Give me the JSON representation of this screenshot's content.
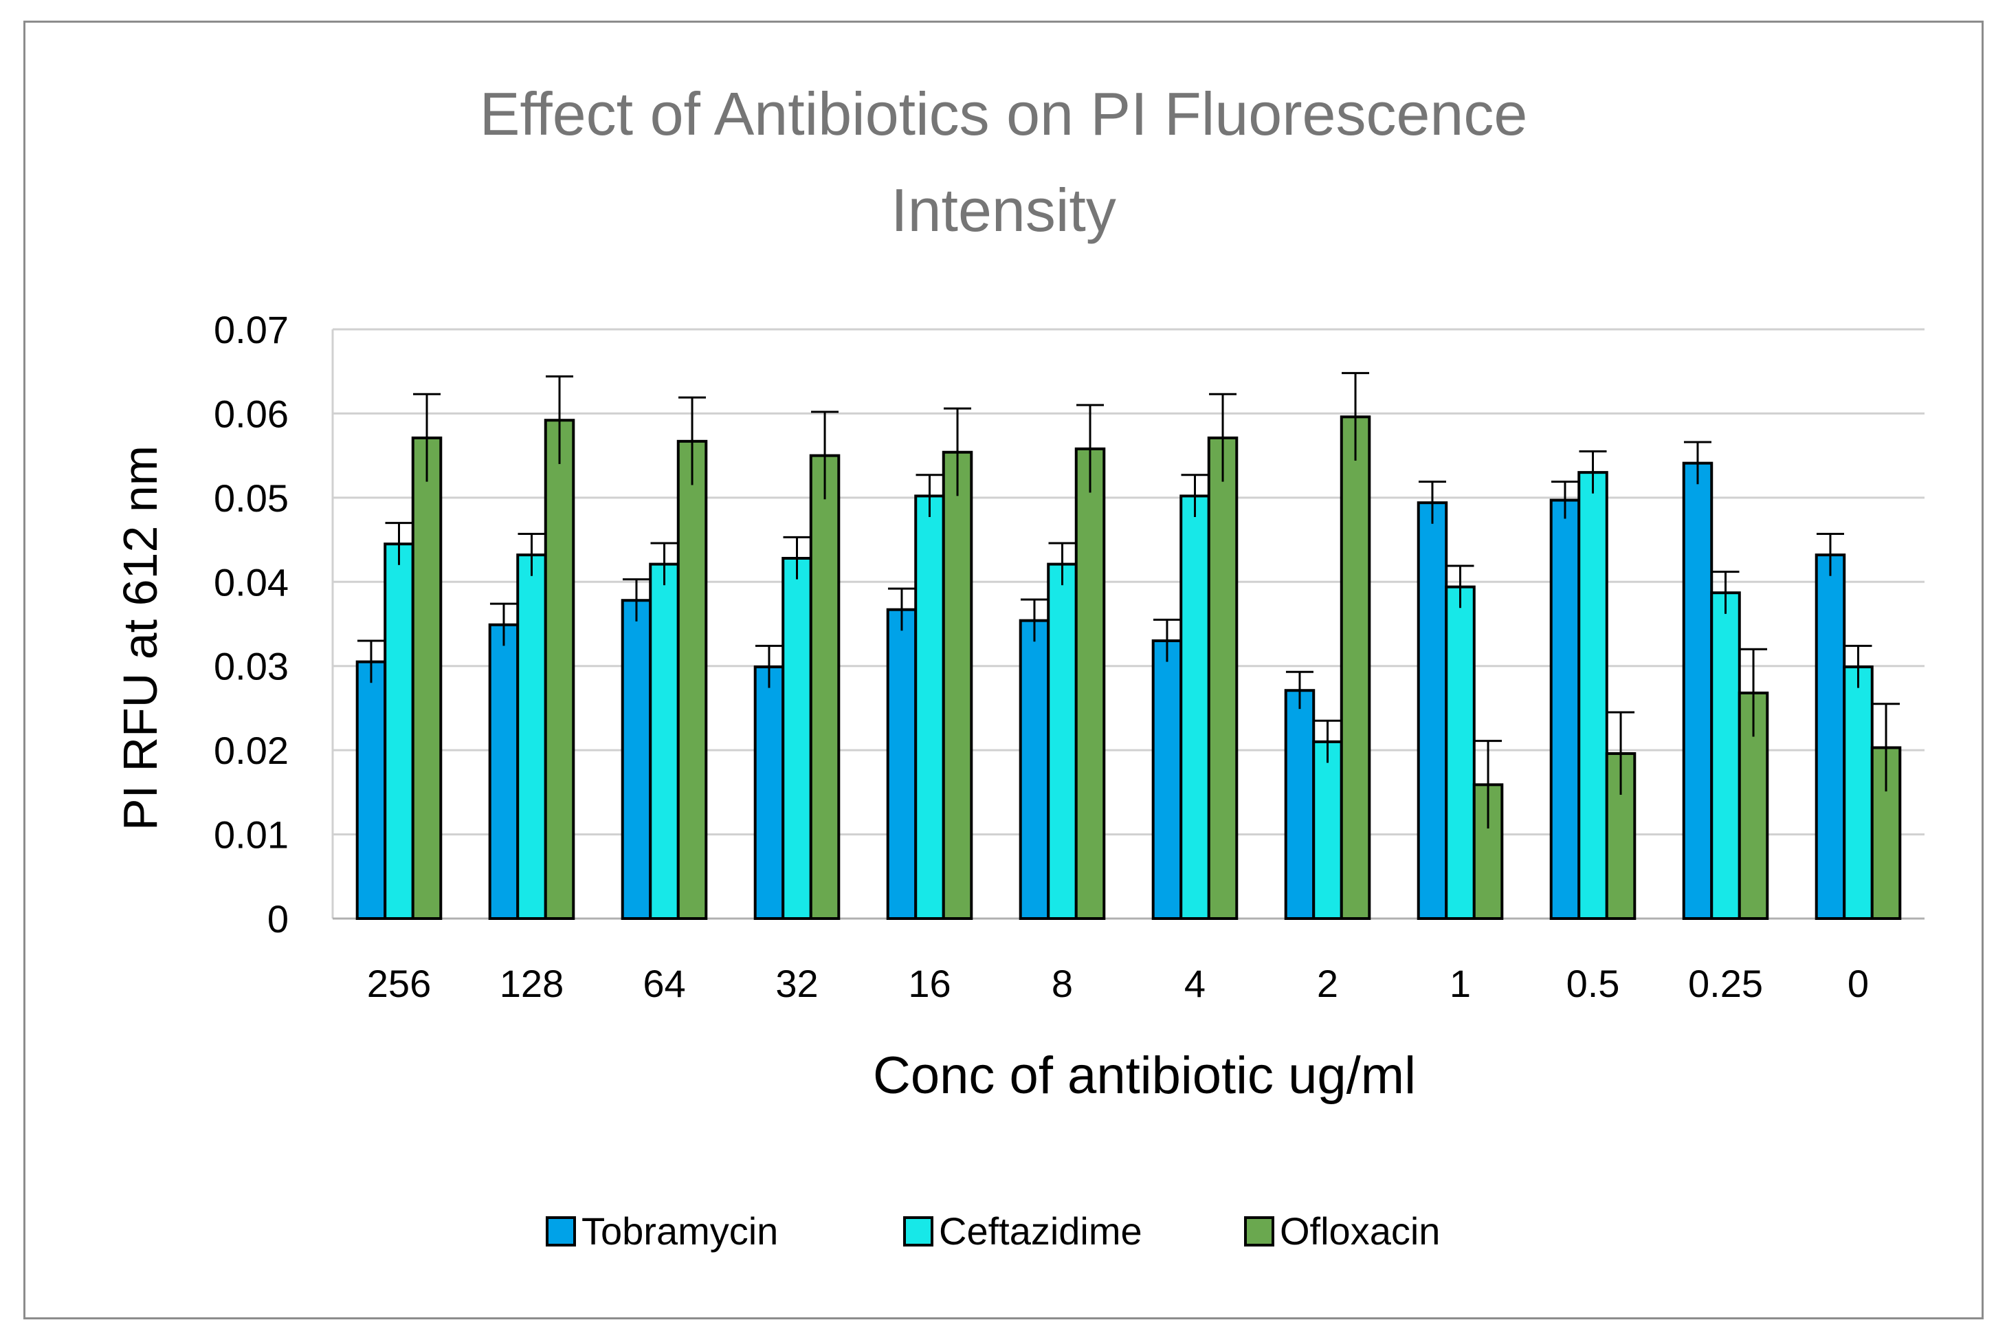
{
  "chart_data": {
    "type": "bar",
    "title_lines": [
      "Effect of Antibiotics on PI Fluorescence",
      "Intensity"
    ],
    "xlabel": "Conc of antibiotic ug/ml",
    "ylabel": "PI RFU at 612 nm",
    "ylim": [
      0,
      0.07
    ],
    "yticks": [
      0,
      0.01,
      0.02,
      0.03,
      0.04,
      0.05,
      0.06,
      0.07
    ],
    "ytick_labels": [
      "0",
      "0.01",
      "0.02",
      "0.03",
      "0.04",
      "0.05",
      "0.06",
      "0.07"
    ],
    "grid": true,
    "legend_position": "bottom",
    "categories": [
      "256",
      "128",
      "64",
      "32",
      "16",
      "8",
      "4",
      "2",
      "1",
      "0.5",
      "0.25",
      "0"
    ],
    "series": [
      {
        "name": "Tobramycin",
        "color": "#00A2E8",
        "values": [
          0.0305,
          0.0349,
          0.0378,
          0.0299,
          0.0367,
          0.0354,
          0.033,
          0.0271,
          0.0494,
          0.0497,
          0.0541,
          0.0432
        ],
        "errors": [
          0.0025,
          0.0025,
          0.0025,
          0.0025,
          0.0025,
          0.0025,
          0.0025,
          0.0022,
          0.0025,
          0.0022,
          0.0025,
          0.0025
        ]
      },
      {
        "name": "Ceftazidime",
        "color": "#17E8E8",
        "values": [
          0.0445,
          0.0432,
          0.0421,
          0.0428,
          0.0502,
          0.0421,
          0.0502,
          0.021,
          0.0394,
          0.053,
          0.0387,
          0.0299
        ],
        "errors": [
          0.0025,
          0.0025,
          0.0025,
          0.0025,
          0.0025,
          0.0025,
          0.0025,
          0.0025,
          0.0025,
          0.0025,
          0.0025,
          0.0025
        ]
      },
      {
        "name": "Ofloxacin",
        "color": "#6AA84F",
        "values": [
          0.0571,
          0.0592,
          0.0567,
          0.055,
          0.0554,
          0.0558,
          0.0571,
          0.0596,
          0.0159,
          0.0196,
          0.0268,
          0.0203
        ],
        "errors": [
          0.0052,
          0.0052,
          0.0052,
          0.0052,
          0.0052,
          0.0052,
          0.0052,
          0.0052,
          0.0052,
          0.0049,
          0.0052,
          0.0052
        ]
      }
    ]
  }
}
